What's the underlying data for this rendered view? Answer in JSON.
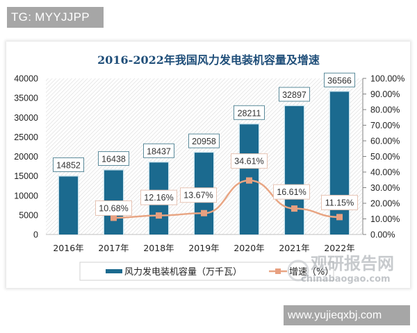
{
  "watermarks": {
    "top_tag": "TG: MYYJJPP",
    "bottom_tag": "www.yujieqxbj.com",
    "logo_cn": "观研报告网",
    "logo_en": "chinabaogao.com"
  },
  "chart": {
    "title": "2016-2022年我国风力发电装机容量及增速",
    "legend": {
      "bar_label": "风力发电装机容量（万千瓦）",
      "line_label": "增速（%）"
    },
    "colors": {
      "bar": "#1b6a8f",
      "line": "#e8a583",
      "marker": "#e8a080",
      "title": "#1f4e79"
    }
  },
  "chart_data": {
    "type": "bar",
    "title": "2016-2022年我国风力发电装机容量及增速",
    "categories": [
      "2016年",
      "2017年",
      "2018年",
      "2019年",
      "2020年",
      "2021年",
      "2022年"
    ],
    "series": [
      {
        "name": "风力发电装机容量（万千瓦）",
        "type": "bar",
        "axis": "left",
        "values": [
          14852,
          16438,
          18437,
          20958,
          28211,
          32897,
          36566
        ],
        "labels": [
          "14852",
          "16438",
          "18437",
          "20958",
          "28211",
          "32897",
          "36566"
        ]
      },
      {
        "name": "增速（%）",
        "type": "line",
        "axis": "right",
        "values": [
          null,
          10.68,
          12.16,
          13.67,
          34.61,
          16.61,
          11.15
        ],
        "labels": [
          "",
          "10.68%",
          "12.16%",
          "13.67%",
          "34.61%",
          "16.61%",
          "11.15%"
        ]
      }
    ],
    "left_axis": {
      "ylim": [
        0,
        40000
      ],
      "ticks": [
        "0",
        "5000",
        "10000",
        "15000",
        "20000",
        "25000",
        "30000",
        "35000",
        "40000"
      ]
    },
    "right_axis": {
      "ylim": [
        0,
        100
      ],
      "ticks": [
        "0.00%",
        "10.00%",
        "20.00%",
        "30.00%",
        "40.00%",
        "50.00%",
        "60.00%",
        "70.00%",
        "80.00%",
        "90.00%",
        "100.00%"
      ]
    },
    "xlabel": "",
    "ylabel": "",
    "grid": false,
    "legend_position": "bottom"
  }
}
